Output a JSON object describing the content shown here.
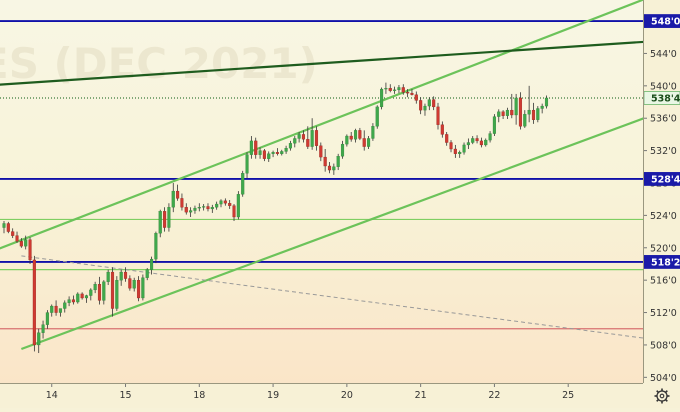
{
  "chart_data": {
    "type": "candlestick",
    "watermark": "ES (DEC 2021)",
    "x_ticks": [
      "14",
      "15",
      "18",
      "19",
      "20",
      "21",
      "22",
      "25"
    ],
    "y_ticks": [
      "504'0",
      "508'0",
      "512'0",
      "516'0",
      "520'0",
      "524'0",
      "528'0",
      "532'0",
      "536'0",
      "540'0",
      "544'0",
      "548'0"
    ],
    "ylim": [
      503.3,
      550.6
    ],
    "price_lines": [
      {
        "label": "548'0",
        "value": 548.0,
        "color": "#1010a8",
        "style": "solid"
      },
      {
        "label": "538'4",
        "value": 538.5,
        "color": "#3a7a3a",
        "style": "dotted"
      },
      {
        "label": "528'4",
        "value": 528.5,
        "color": "#1010a8",
        "style": "solid"
      },
      {
        "label": "518'2",
        "value": 518.25,
        "color": "#1010a8",
        "style": "solid"
      }
    ],
    "horizontal_lines": [
      {
        "value": 523.5,
        "color": "#7fcf62"
      },
      {
        "value": 517.3,
        "color": "#7fcf62"
      },
      {
        "value": 510.0,
        "color": "#d87070"
      }
    ],
    "trend_lines": [
      {
        "name": "channel-top",
        "color": "#6cc35a",
        "from": {
          "bar": -3,
          "price": 519.5
        },
        "to": {
          "bar": 149,
          "price": 551.0
        }
      },
      {
        "name": "channel-bottom",
        "color": "#6cc35a",
        "from": {
          "bar": 4,
          "price": 507.5
        },
        "to": {
          "bar": 155,
          "price": 537.5
        }
      },
      {
        "name": "long-resistance",
        "color": "#1e5c1e",
        "from": {
          "bar": -5,
          "price": 540.0
        },
        "to": {
          "bar": 155,
          "price": 545.7
        }
      },
      {
        "name": "dashed-support",
        "color": "#999999",
        "from": {
          "bar": 4,
          "price": 519.0
        },
        "to": {
          "bar": 155,
          "price": 508.3
        }
      }
    ],
    "ohlc": [
      [
        522.5,
        523.3,
        521.8,
        523.0
      ],
      [
        523.0,
        523.2,
        521.8,
        522.0
      ],
      [
        522.0,
        522.4,
        521.2,
        521.5
      ],
      [
        521.5,
        522.0,
        520.6,
        520.8
      ],
      [
        520.8,
        521.2,
        520.0,
        520.2
      ],
      [
        520.2,
        521.5,
        519.8,
        521.0
      ],
      [
        521.0,
        521.3,
        518.0,
        518.5
      ],
      [
        518.5,
        519.0,
        507.2,
        508.0
      ],
      [
        508.0,
        510.0,
        507.0,
        509.5
      ],
      [
        509.5,
        511.0,
        508.8,
        510.5
      ],
      [
        510.5,
        512.3,
        510.0,
        512.0
      ],
      [
        512.0,
        513.0,
        511.5,
        512.8
      ],
      [
        512.8,
        513.5,
        511.6,
        512.0
      ],
      [
        512.0,
        512.5,
        511.5,
        512.5
      ],
      [
        512.5,
        513.5,
        512.0,
        513.2
      ],
      [
        513.2,
        514.0,
        512.8,
        513.6
      ],
      [
        513.6,
        514.1,
        513.0,
        513.3
      ],
      [
        513.3,
        514.5,
        513.1,
        514.3
      ],
      [
        514.3,
        514.5,
        513.6,
        513.8
      ],
      [
        513.8,
        514.2,
        513.2,
        514.1
      ],
      [
        514.1,
        515.0,
        513.5,
        514.8
      ],
      [
        514.8,
        515.8,
        514.4,
        515.5
      ],
      [
        515.5,
        516.4,
        513.0,
        513.5
      ],
      [
        513.5,
        516.0,
        513.0,
        515.8
      ],
      [
        515.8,
        517.3,
        515.4,
        517.0
      ],
      [
        517.0,
        517.6,
        511.5,
        512.5
      ],
      [
        512.5,
        516.5,
        512.2,
        516.0
      ],
      [
        516.0,
        517.3,
        515.3,
        517.0
      ],
      [
        517.0,
        517.6,
        515.8,
        516.2
      ],
      [
        516.2,
        516.6,
        514.7,
        515.0
      ],
      [
        515.0,
        516.3,
        514.6,
        516.0
      ],
      [
        516.0,
        516.5,
        513.4,
        513.8
      ],
      [
        513.8,
        516.7,
        513.5,
        516.3
      ],
      [
        516.3,
        517.5,
        516.0,
        517.3
      ],
      [
        517.3,
        518.9,
        516.7,
        518.6
      ],
      [
        518.6,
        522.0,
        518.1,
        521.8
      ],
      [
        521.8,
        524.7,
        521.3,
        524.5
      ],
      [
        524.5,
        525.0,
        522.0,
        522.5
      ],
      [
        522.5,
        525.5,
        522.0,
        525.0
      ],
      [
        525.0,
        528.0,
        524.4,
        527.0
      ],
      [
        527.0,
        527.8,
        525.8,
        526.1
      ],
      [
        526.1,
        526.7,
        524.6,
        525.0
      ],
      [
        525.0,
        525.5,
        524.1,
        524.4
      ],
      [
        524.4,
        525.0,
        523.8,
        524.6
      ],
      [
        524.6,
        525.2,
        524.2,
        524.9
      ],
      [
        524.9,
        525.5,
        524.5,
        525.0
      ],
      [
        525.0,
        525.4,
        524.6,
        525.1
      ],
      [
        525.1,
        525.5,
        524.5,
        524.8
      ],
      [
        524.8,
        525.3,
        524.3,
        525.0
      ],
      [
        525.0,
        525.7,
        524.7,
        525.4
      ],
      [
        525.4,
        526.0,
        525.0,
        525.8
      ],
      [
        525.8,
        526.1,
        525.2,
        525.5
      ],
      [
        525.5,
        525.9,
        524.8,
        525.2
      ],
      [
        525.2,
        525.4,
        523.3,
        523.8
      ],
      [
        523.8,
        527.0,
        523.5,
        526.6
      ],
      [
        526.6,
        529.5,
        526.3,
        529.2
      ],
      [
        529.2,
        531.8,
        528.6,
        531.5
      ],
      [
        531.5,
        533.8,
        531.0,
        533.2
      ],
      [
        533.2,
        533.6,
        531.0,
        531.5
      ],
      [
        531.5,
        532.4,
        531.0,
        532.0
      ],
      [
        532.0,
        532.2,
        530.7,
        531.0
      ],
      [
        531.0,
        531.9,
        530.6,
        531.6
      ],
      [
        531.6,
        532.0,
        531.2,
        531.8
      ],
      [
        531.8,
        532.3,
        531.4,
        531.6
      ],
      [
        531.6,
        532.1,
        531.4,
        531.9
      ],
      [
        531.9,
        532.6,
        531.6,
        532.3
      ],
      [
        532.3,
        533.2,
        532.0,
        532.9
      ],
      [
        532.9,
        533.8,
        532.4,
        533.5
      ],
      [
        533.5,
        534.3,
        533.0,
        534.0
      ],
      [
        534.0,
        534.5,
        533.0,
        533.4
      ],
      [
        533.4,
        535.0,
        532.2,
        532.5
      ],
      [
        532.5,
        536.0,
        532.1,
        534.5
      ],
      [
        534.5,
        535.0,
        532.0,
        532.6
      ],
      [
        532.6,
        533.0,
        530.7,
        531.2
      ],
      [
        531.2,
        532.2,
        529.4,
        530.1
      ],
      [
        530.1,
        530.6,
        529.2,
        529.6
      ],
      [
        529.6,
        530.4,
        529.0,
        530.0
      ],
      [
        530.0,
        531.6,
        529.6,
        531.3
      ],
      [
        531.3,
        533.2,
        531.0,
        532.8
      ],
      [
        532.8,
        534.0,
        532.5,
        533.8
      ],
      [
        533.8,
        534.3,
        533.1,
        533.4
      ],
      [
        533.4,
        534.7,
        533.0,
        534.5
      ],
      [
        534.5,
        534.8,
        533.3,
        533.5
      ],
      [
        533.5,
        534.5,
        532.0,
        532.5
      ],
      [
        532.5,
        533.8,
        532.2,
        533.5
      ],
      [
        533.5,
        535.4,
        533.2,
        535.0
      ],
      [
        535.0,
        537.6,
        534.7,
        537.4
      ],
      [
        537.4,
        539.8,
        537.1,
        539.6
      ],
      [
        539.6,
        540.4,
        539.0,
        539.7
      ],
      [
        539.7,
        540.2,
        539.2,
        539.4
      ],
      [
        539.4,
        539.9,
        539.0,
        539.5
      ],
      [
        539.5,
        540.1,
        539.1,
        539.8
      ],
      [
        539.8,
        540.2,
        538.9,
        539.2
      ],
      [
        539.2,
        539.6,
        538.6,
        539.1
      ],
      [
        539.1,
        539.6,
        538.8,
        538.9
      ],
      [
        538.9,
        539.3,
        537.8,
        538.2
      ],
      [
        538.2,
        538.6,
        536.5,
        537.0
      ],
      [
        537.0,
        537.8,
        536.3,
        537.5
      ],
      [
        537.5,
        538.6,
        537.0,
        538.3
      ],
      [
        538.3,
        538.7,
        537.0,
        537.4
      ],
      [
        537.4,
        537.9,
        534.6,
        535.2
      ],
      [
        535.2,
        535.6,
        533.6,
        534.0
      ],
      [
        534.0,
        534.3,
        532.6,
        533.0
      ],
      [
        533.0,
        533.3,
        531.8,
        532.2
      ],
      [
        532.2,
        532.7,
        531.1,
        531.6
      ],
      [
        531.6,
        532.0,
        531.1,
        531.8
      ],
      [
        531.8,
        533.0,
        531.5,
        532.7
      ],
      [
        532.7,
        533.5,
        532.2,
        533.0
      ],
      [
        533.0,
        533.8,
        532.8,
        533.5
      ],
      [
        533.5,
        533.9,
        532.9,
        533.2
      ],
      [
        533.2,
        533.6,
        532.4,
        532.7
      ],
      [
        532.7,
        533.5,
        532.5,
        533.3
      ],
      [
        533.3,
        534.4,
        533.0,
        534.1
      ],
      [
        534.1,
        536.5,
        533.8,
        536.2
      ],
      [
        536.2,
        537.1,
        535.5,
        536.8
      ],
      [
        536.8,
        537.0,
        535.9,
        536.3
      ],
      [
        536.3,
        537.3,
        535.9,
        537.0
      ],
      [
        537.0,
        539.0,
        536.0,
        536.4
      ],
      [
        536.4,
        539.0,
        535.2,
        538.5
      ],
      [
        538.5,
        539.2,
        534.6,
        535.0
      ],
      [
        535.0,
        537.0,
        534.8,
        536.5
      ],
      [
        536.5,
        540.0,
        535.5,
        537.0
      ],
      [
        537.0,
        537.9,
        535.3,
        535.8
      ],
      [
        535.8,
        537.5,
        535.5,
        537.2
      ],
      [
        537.2,
        537.8,
        536.6,
        537.5
      ],
      [
        537.5,
        538.8,
        537.2,
        538.5
      ]
    ]
  }
}
